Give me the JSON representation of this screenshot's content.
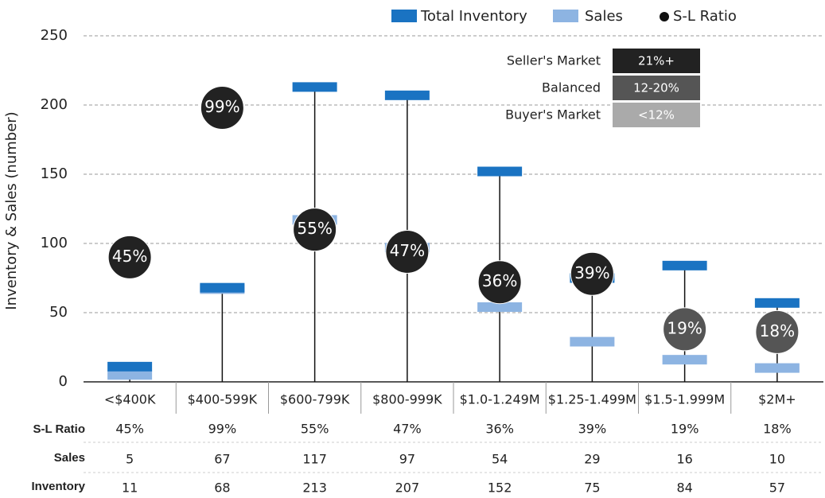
{
  "chart_data": {
    "type": "bar",
    "y_label": "Inventory & Sales (number)",
    "categories": [
      "<$400K",
      "$400-599K",
      "$600-799K",
      "$800-999K",
      "$1.0-1.249M",
      "$1.25-1.499M",
      "$1.5-1.999M",
      "$2M+"
    ],
    "series": [
      {
        "name": "Total Inventory",
        "color": "#1a73c2",
        "values": [
          11,
          68,
          213,
          207,
          152,
          75,
          84,
          57
        ]
      },
      {
        "name": "Sales",
        "color": "#8db4e2",
        "values": [
          5,
          67,
          117,
          97,
          54,
          29,
          16,
          10
        ]
      },
      {
        "name": "S-L Ratio",
        "color": "#111",
        "axis": "y2",
        "values": [
          45,
          99,
          55,
          47,
          36,
          39,
          19,
          18
        ],
        "value_labels": [
          "45%",
          "99%",
          "55%",
          "47%",
          "36%",
          "39%",
          "19%",
          "18%"
        ],
        "colors": [
          "#222",
          "#222",
          "#222",
          "#222",
          "#222",
          "#222",
          "#555",
          "#555"
        ]
      }
    ],
    "ylim": [
      0,
      250
    ],
    "yticks": [
      0,
      50,
      100,
      150,
      200,
      250
    ],
    "y2lim": [
      0,
      125
    ],
    "grid": true,
    "market_key": [
      {
        "name": "Seller's Market",
        "label": "21%+",
        "color": "#222"
      },
      {
        "name": "Balanced",
        "label": "12-20%",
        "color": "#555"
      },
      {
        "name": "Buyer's Market",
        "label": "<12%",
        "color": "#aaa"
      }
    ],
    "table_labels": [
      "S-L Ratio",
      "Sales",
      "Inventory"
    ]
  }
}
